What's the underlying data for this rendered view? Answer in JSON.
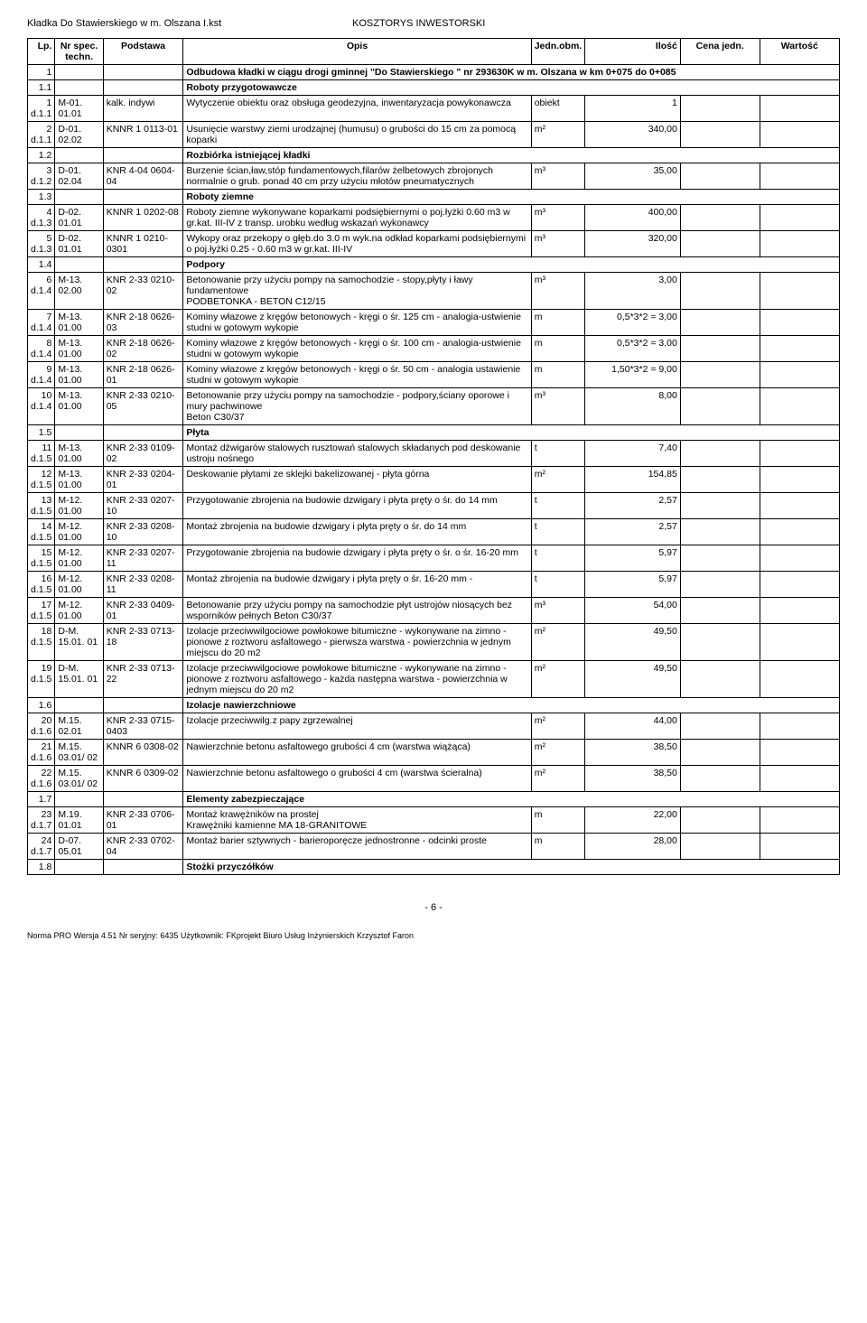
{
  "header": {
    "left": "Kładka Do Stawierskiego w m. Olszana I.kst",
    "right": "KOSZTORYS INWESTORSKI"
  },
  "columns": [
    "Lp.",
    "Nr spec. techn.",
    "Podstawa",
    "Opis",
    "Jedn.obm.",
    "Ilość",
    "Cena jedn.",
    "Wartość"
  ],
  "rows": [
    {
      "lp": "1",
      "nr": "",
      "pod": "",
      "opis": "Odbudowa kładki w ciągu drogi gminnej \"Do Stawierskiego \" nr 293630K w m. Olszana  w km 0+075 do 0+085",
      "jedn": "",
      "ilosc": "",
      "section": true
    },
    {
      "lp": "1.1",
      "nr": "",
      "pod": "",
      "opis": "Roboty przygotowawcze",
      "jedn": "",
      "ilosc": "",
      "section": true
    },
    {
      "lp": "1\nd.1.1",
      "nr": "M-01. 01.01",
      "pod": "kalk. indywi",
      "opis": "Wytyczenie obiektu oraz obsługa geodezyjna, inwentaryzacja powykonawcza",
      "jedn": "obiekt",
      "ilosc": "1"
    },
    {
      "lp": "2\nd.1.1",
      "nr": "D-01. 02.02",
      "pod": "KNNR 1 0113-01",
      "opis": "Usunięcie warstwy ziemi urodzajnej (humusu) o grubości do 15 cm za pomocą koparki",
      "jedn": "m²",
      "ilosc": "340,00"
    },
    {
      "lp": "1.2",
      "nr": "",
      "pod": "",
      "opis": "Rozbiórka istniejącej kładki",
      "jedn": "",
      "ilosc": "",
      "section": true
    },
    {
      "lp": "3\nd.1.2",
      "nr": "D-01. 02.04",
      "pod": "KNR 4-04 0604-04",
      "opis": "Burzenie ścian,ław,stóp fundamentowych,filarów żelbetowych zbrojonych normalnie o grub. ponad 40 cm przy użyciu młotów pneumatycznych",
      "jedn": "m³",
      "ilosc": "35,00"
    },
    {
      "lp": "1.3",
      "nr": "",
      "pod": "",
      "opis": "Roboty  ziemne",
      "jedn": "",
      "ilosc": "",
      "section": true
    },
    {
      "lp": "4\nd.1.3",
      "nr": "D-02. 01.01",
      "pod": "KNNR 1 0202-08",
      "opis": "Roboty ziemne wykonywane koparkami podsiębiernymi o poj.łyżki 0.60 m3 w gr.kat. III-IV z transp. urobku według wskazań wykonawcy",
      "jedn": "m³",
      "ilosc": "400,00"
    },
    {
      "lp": "5\nd.1.3",
      "nr": "D-02. 01.01",
      "pod": "KNNR 1 0210-0301",
      "opis": "Wykopy oraz przekopy o głęb.do 3.0 m wyk.na odkład koparkami podsiębiernymi o poj.łyżki 0.25 - 0.60 m3 w gr.kat. III-IV",
      "jedn": "m³",
      "ilosc": "320,00"
    },
    {
      "lp": "1.4",
      "nr": "",
      "pod": "",
      "opis": "Podpory",
      "jedn": "",
      "ilosc": "",
      "section": true
    },
    {
      "lp": "6\nd.1.4",
      "nr": "M-13. 02.00",
      "pod": "KNR 2-33 0210-02",
      "opis": "Betonowanie przy użyciu pompy na samochodzie - stopy,płyty i ławy fundamentowe\nPODBETONKA - BETON  C12/15",
      "jedn": "m³",
      "ilosc": "3,00"
    },
    {
      "lp": "7\nd.1.4",
      "nr": "M-13. 01.00",
      "pod": "KNR 2-18 0626-03",
      "opis": "Kominy włazowe z kręgów betonowych - kręgi o śr. 125 cm - analogia-ustwienie studni w gotowym wykopie",
      "jedn": "m",
      "ilosc": "0,5*3*2 = 3,00"
    },
    {
      "lp": "8\nd.1.4",
      "nr": "M-13. 01.00",
      "pod": "KNR 2-18 0626-02",
      "opis": "Kominy włazowe z kręgów betonowych - kręgi o śr. 100 cm - analogia-ustwienie studni w gotowym wykopie",
      "jedn": "m",
      "ilosc": "0,5*3*2 = 3,00"
    },
    {
      "lp": "9\nd.1.4",
      "nr": "M-13. 01.00",
      "pod": "KNR 2-18 0626-01",
      "opis": "Kominy włazowe z kręgów betonowych - kręgi o śr. 50 cm - analogia  ustawienie studni w gotowym wykopie",
      "jedn": "m",
      "ilosc": "1,50*3*2 = 9,00"
    },
    {
      "lp": "10\nd.1.4",
      "nr": "M-13. 01.00",
      "pod": "KNR 2-33 0210-05",
      "opis": "Betonowanie przy użyciu pompy na samochodzie - podpory,ściany oporowe i mury pachwinowe\nBeton C30/37",
      "jedn": "m³",
      "ilosc": "8,00"
    },
    {
      "lp": "1.5",
      "nr": "",
      "pod": "",
      "opis": "Płyta",
      "jedn": "",
      "ilosc": "",
      "section": true
    },
    {
      "lp": "11\nd.1.5",
      "nr": "M-13. 01.00",
      "pod": "KNR 2-33 0109-02",
      "opis": "Montaż dźwigarów stalowych rusztowań stalowych składanych pod deskowanie ustroju nośnego",
      "jedn": "t",
      "ilosc": "7,40"
    },
    {
      "lp": "12\nd.1.5",
      "nr": "M-13. 01.00",
      "pod": "KNR 2-33 0204-01",
      "opis": "Deskowanie płytami ze sklejki bakelizowanej -  płyta górna",
      "jedn": "m²",
      "ilosc": "154,85"
    },
    {
      "lp": "13\nd.1.5",
      "nr": "M-12. 01.00",
      "pod": "KNR 2-33 0207-10",
      "opis": "Przygotowanie zbrojenia na budowie  dzwigary i płyta pręty o śr. do 14 mm",
      "jedn": "t",
      "ilosc": "2,57"
    },
    {
      "lp": "14\nd.1.5",
      "nr": "M-12. 01.00",
      "pod": "KNR 2-33 0208-10",
      "opis": "Montaż  zbrojenia na budowie  dzwigary i płyta pręty o śr. do 14 mm",
      "jedn": "t",
      "ilosc": "2,57"
    },
    {
      "lp": "15\nd.1.5",
      "nr": "M-12. 01.00",
      "pod": "KNR 2-33 0207-11",
      "opis": "Przygotowanie zbrojenia na budowie  dzwigary i płyta pręty o śr. o śr. 16-20 mm",
      "jedn": "t",
      "ilosc": "5,97"
    },
    {
      "lp": "16\nd.1.5",
      "nr": "M-12. 01.00",
      "pod": "KNR 2-33 0208-11",
      "opis": "Montaż  zbrojenia na budowie  dzwigary i płyta pręty o śr. 16-20 mm -",
      "jedn": "t",
      "ilosc": "5,97"
    },
    {
      "lp": "17\nd.1.5",
      "nr": "M-12. 01.00",
      "pod": "KNR 2-33 0409-01",
      "opis": "Betonowanie przy użyciu pompy na samochodzie płyt ustrojów niosących bez wsporników pełnych Beton C30/37",
      "jedn": "m³",
      "ilosc": "54,00"
    },
    {
      "lp": "18\nd.1.5",
      "nr": "D-M. 15.01. 01",
      "pod": "KNR 2-33 0713-18",
      "opis": "Izolacje przeciwwilgociowe powłokowe bitumiczne - wykonywane na zimno - pionowe z roztworu asfaltowego - pierwsza warstwa - powierzchnia w jednym miejscu do 20 m2",
      "jedn": "m²",
      "ilosc": "49,50"
    },
    {
      "lp": "19\nd.1.5",
      "nr": "D-M. 15.01. 01",
      "pod": "KNR 2-33 0713-22",
      "opis": "Izolacje przeciwwilgociowe powłokowe bitumiczne - wykonywane na zimno - pionowe z roztworu asfaltowego - każda następna warstwa - powierzchnia w jednym miejscu do 20 m2",
      "jedn": "m²",
      "ilosc": "49,50"
    },
    {
      "lp": "1.6",
      "nr": "",
      "pod": "",
      "opis": "Izolacje nawierzchniowe",
      "jedn": "",
      "ilosc": "",
      "section": true
    },
    {
      "lp": "20\nd.1.6",
      "nr": "M.15. 02.01",
      "pod": "KNR 2-33 0715-0403",
      "opis": "Izolacje przeciwwilg.z papy zgrzewalnej",
      "jedn": "m²",
      "ilosc": "44,00"
    },
    {
      "lp": "21\nd.1.6",
      "nr": "M.15. 03.01/ 02",
      "pod": "KNNR 6 0308-02",
      "opis": "Nawierzchnie betonu asfaltowego   grubości 4 cm (warstwa wiążąca)",
      "jedn": "m²",
      "ilosc": "38,50"
    },
    {
      "lp": "22\nd.1.6",
      "nr": "M.15. 03.01/ 02",
      "pod": "KNNR 6 0309-02",
      "opis": "Nawierzchnie betonu asfaltowego  o grubości 4 cm (warstwa ścieralna)",
      "jedn": "m²",
      "ilosc": "38,50"
    },
    {
      "lp": "1.7",
      "nr": "",
      "pod": "",
      "opis": "Elementy zabezpieczające",
      "jedn": "",
      "ilosc": "",
      "section": true
    },
    {
      "lp": "23\nd.1.7",
      "nr": "M.19. 01.01",
      "pod": "KNR 2-33 0706-01",
      "opis": "Montaż krawężników na prostej\nKrawężniki kamienne MA 18-GRANITOWE",
      "jedn": "m",
      "ilosc": "22,00"
    },
    {
      "lp": "24\nd.1.7",
      "nr": "D-07. 05.01",
      "pod": "KNR 2-33 0702-04",
      "opis": "Montaż barier sztywnych - barieroporęcze jednostronne - odcinki proste",
      "jedn": "m",
      "ilosc": "28,00"
    },
    {
      "lp": "1.8",
      "nr": "",
      "pod": "",
      "opis": "Stożki przyczółków",
      "jedn": "",
      "ilosc": "",
      "section": true
    }
  ],
  "pageNum": "- 6 -",
  "footer": "Norma PRO Wersja 4.51 Nr seryjny: 6435 Użytkownik: FKprojekt  Biuro Usług Inżynierskich Krzysztof Faron"
}
